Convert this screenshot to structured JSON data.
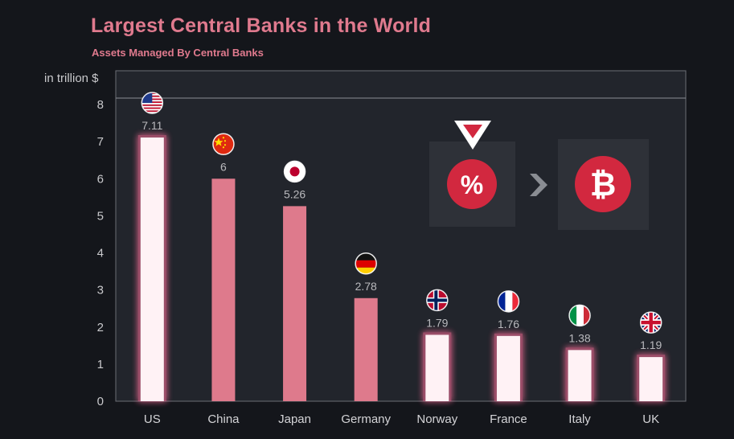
{
  "header": {
    "title": "Largest Central Banks in the World",
    "subtitle": "Assets Managed By Central Banks",
    "unit_label": "in trillion $"
  },
  "colors": {
    "background": "#14161b",
    "plot_background": "#22252c",
    "bar": "#de7a8c",
    "bar_highlight": "#fff2f5",
    "glow": "#ff6e9a",
    "accent_red": "#d2283f",
    "card": "#2e3138"
  },
  "chart_data": {
    "type": "bar",
    "title": "Largest Central Banks in the World",
    "subtitle": "Assets Managed By Central Banks",
    "ylabel": "in trillion $",
    "xlabel": "",
    "ylim": [
      0,
      8
    ],
    "yticks": [
      "0",
      "1",
      "2",
      "3",
      "4",
      "5",
      "6",
      "7",
      "8"
    ],
    "grid": false,
    "categories": [
      "US",
      "China",
      "Japan",
      "Germany",
      "Norway",
      "France",
      "Italy",
      "UK"
    ],
    "values": [
      7.11,
      6,
      5.26,
      2.78,
      1.79,
      1.76,
      1.38,
      1.19
    ],
    "value_labels": [
      "7.11",
      "6",
      "5.26",
      "2.78",
      "1.79",
      "1.76",
      "1.38",
      "1.19"
    ],
    "highlighted": [
      true,
      false,
      false,
      false,
      true,
      true,
      true,
      true
    ],
    "flag_icons": [
      "us-flag-icon",
      "china-flag-icon",
      "japan-flag-icon",
      "germany-flag-icon",
      "norway-flag-icon",
      "france-flag-icon",
      "italy-flag-icon",
      "uk-flag-icon"
    ]
  },
  "overlay": {
    "percent_symbol": "%",
    "bitcoin_symbol": "₿",
    "icons": [
      "logo-chevron-icon",
      "percent-icon",
      "arrow-right-icon",
      "bitcoin-icon"
    ]
  }
}
